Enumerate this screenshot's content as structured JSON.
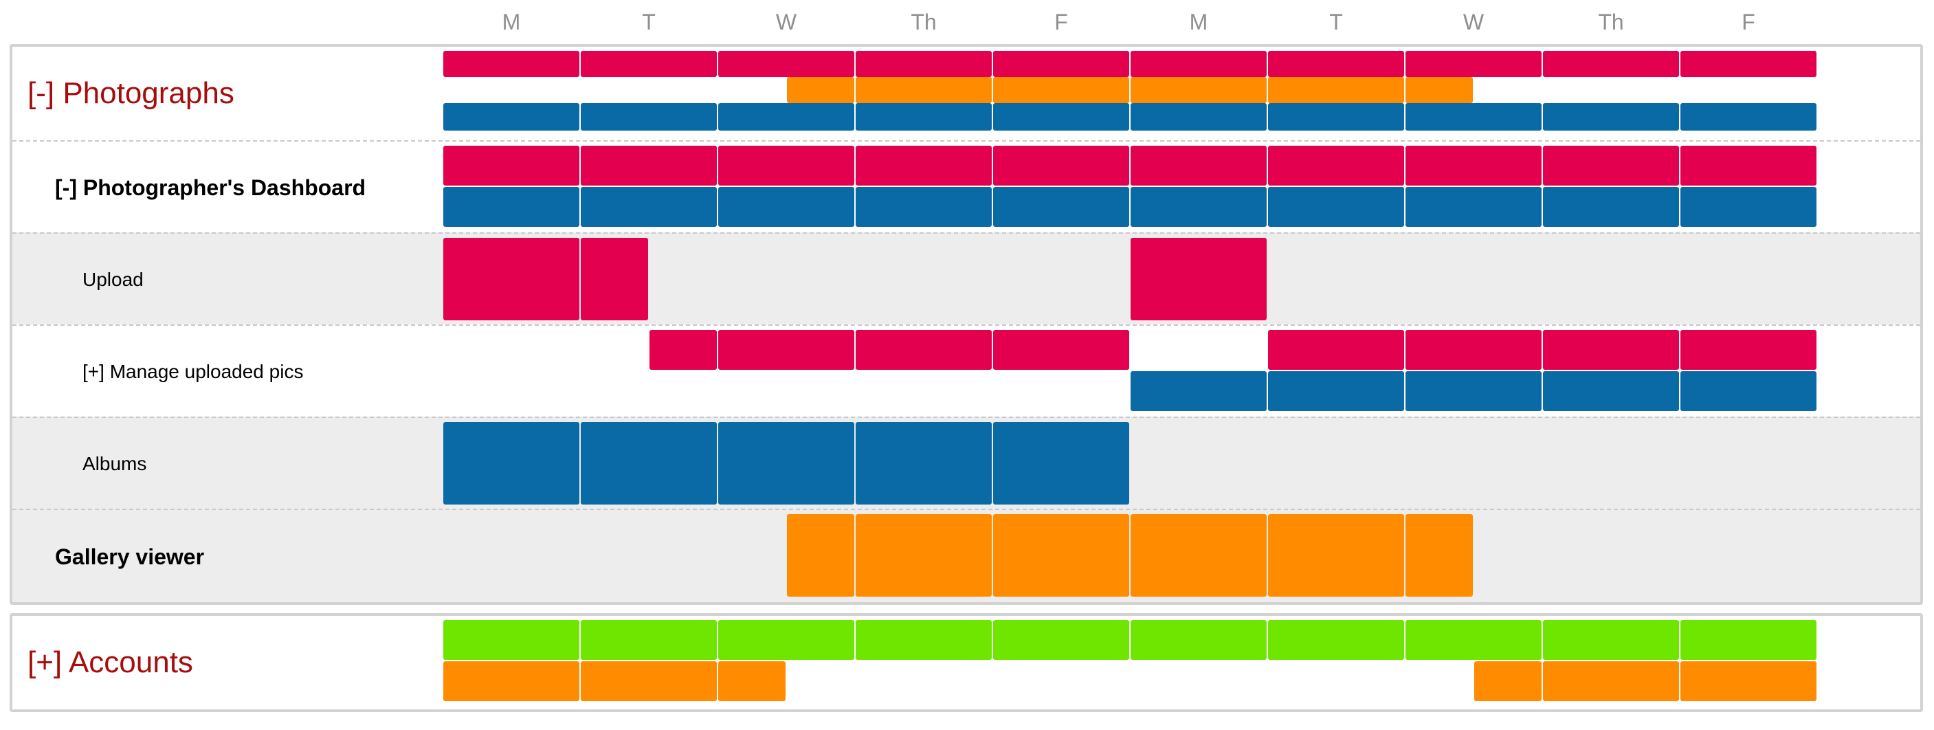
{
  "colors": {
    "pink": "#e2004f",
    "blue": "#0a6aa6",
    "orange": "#ff8c00",
    "green": "#6ee600",
    "group_label": "#a60d0d",
    "day_header": "#8f8f8f"
  },
  "days": [
    "M",
    "T",
    "W",
    "Th",
    "F",
    "M",
    "T",
    "W",
    "Th",
    "F"
  ],
  "groups": [
    {
      "id": "photographs",
      "label": "[-] Photographs",
      "rows": [
        {
          "id": "photographs-summary",
          "style": "group",
          "label": "[-] Photographs",
          "bg": "white",
          "lanes": [
            [
              {
                "color": "pink",
                "start": 0,
                "end": 10
              }
            ],
            [
              {
                "color": "orange",
                "start": 2.5,
                "end": 7.5
              }
            ],
            [
              {
                "color": "blue",
                "start": 0,
                "end": 10
              }
            ]
          ]
        },
        {
          "id": "photographers-dashboard",
          "style": "sub",
          "label": "[-] Photographer's Dashboard",
          "bg": "white",
          "lanes": [
            [
              {
                "color": "pink",
                "start": 0,
                "end": 10
              }
            ],
            [
              {
                "color": "blue",
                "start": 0,
                "end": 10
              }
            ]
          ]
        },
        {
          "id": "upload",
          "style": "item",
          "label": "Upload",
          "bg": "grey",
          "lanes": [
            [
              {
                "color": "pink",
                "start": 0,
                "end": 1.5
              },
              {
                "color": "pink",
                "start": 5,
                "end": 6
              }
            ]
          ]
        },
        {
          "id": "manage-uploaded-pics",
          "style": "item",
          "label": "[+] Manage uploaded pics",
          "bg": "white",
          "lanes": [
            [
              {
                "color": "pink",
                "start": 1.5,
                "end": 5
              },
              {
                "color": "pink",
                "start": 6,
                "end": 10
              }
            ],
            [
              {
                "color": "blue",
                "start": 5,
                "end": 10
              }
            ]
          ]
        },
        {
          "id": "albums",
          "style": "item",
          "label": "Albums",
          "bg": "grey",
          "lanes": [
            [
              {
                "color": "blue",
                "start": 0,
                "end": 5
              }
            ]
          ]
        },
        {
          "id": "gallery-viewer",
          "style": "sub",
          "label": "Gallery viewer",
          "bg": "grey",
          "lanes": [
            [
              {
                "color": "orange",
                "start": 2.5,
                "end": 7.5
              }
            ]
          ]
        }
      ]
    },
    {
      "id": "accounts",
      "label": "[+] Accounts",
      "rows": [
        {
          "id": "accounts-summary",
          "style": "group",
          "label": "[+] Accounts",
          "bg": "white",
          "lanes": [
            [
              {
                "color": "green",
                "start": 0,
                "end": 10
              }
            ],
            [
              {
                "color": "orange",
                "start": 0,
                "end": 2.5
              },
              {
                "color": "orange",
                "start": 7.5,
                "end": 10
              }
            ]
          ]
        }
      ]
    }
  ]
}
